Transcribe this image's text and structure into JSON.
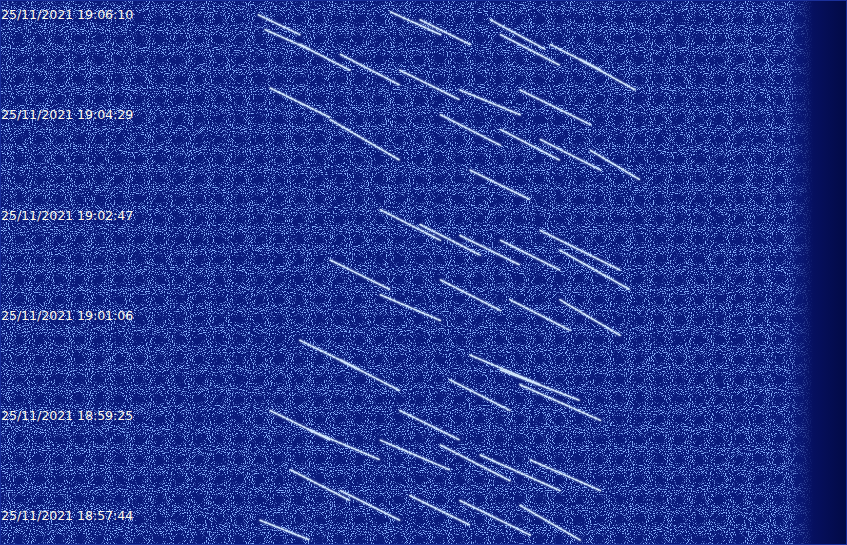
{
  "chart_data": {
    "type": "spectrogram",
    "xlim": [
      0,
      100
    ],
    "ylim": [
      68234,
      68785
    ],
    "yticks": [
      {
        "value": 68770,
        "label": "25/11/2021 19:06:10"
      },
      {
        "value": 68669,
        "label": "25/11/2021 19:04:29"
      },
      {
        "value": 68567,
        "label": "25/11/2021 19:02:47"
      },
      {
        "value": 68466,
        "label": "25/11/2021 19:01:06"
      },
      {
        "value": 68365,
        "label": "25/11/2021 18:59:25"
      },
      {
        "value": 68264,
        "label": "25/11/2021 18:57:44"
      }
    ],
    "tick_labels": "y",
    "grid": false,
    "color": "#d6ecff",
    "traces": [
      {
        "x": [
          30.5,
          35.4
        ],
        "y": [
          68770,
          68750
        ]
      },
      {
        "x": [
          31.3,
          36.6
        ],
        "y": [
          68755,
          68735
        ]
      },
      {
        "x": [
          35.4,
          41.3
        ],
        "y": [
          68740,
          68714
        ]
      },
      {
        "x": [
          40.2,
          47.2
        ],
        "y": [
          68730,
          68699
        ]
      },
      {
        "x": [
          46.1,
          52.0
        ],
        "y": [
          68773,
          68750
        ]
      },
      {
        "x": [
          49.6,
          55.5
        ],
        "y": [
          68765,
          68740
        ]
      },
      {
        "x": [
          57.9,
          64.4
        ],
        "y": [
          68765,
          68735
        ]
      },
      {
        "x": [
          59.1,
          66.1
        ],
        "y": [
          68750,
          68719
        ]
      },
      {
        "x": [
          65.0,
          70.9
        ],
        "y": [
          68740,
          68714
        ]
      },
      {
        "x": [
          68.5,
          75.0
        ],
        "y": [
          68725,
          68694
        ]
      },
      {
        "x": [
          47.2,
          54.3
        ],
        "y": [
          68714,
          68684
        ]
      },
      {
        "x": [
          54.3,
          61.4
        ],
        "y": [
          68694,
          68669
        ]
      },
      {
        "x": [
          61.4,
          69.7
        ],
        "y": [
          68694,
          68659
        ]
      },
      {
        "x": [
          31.9,
          39.0
        ],
        "y": [
          68696,
          68666
        ]
      },
      {
        "x": [
          39.0,
          47.2
        ],
        "y": [
          68664,
          68623
        ]
      },
      {
        "x": [
          52.0,
          59.1
        ],
        "y": [
          68669,
          68638
        ]
      },
      {
        "x": [
          59.1,
          66.1
        ],
        "y": [
          68654,
          68623
        ]
      },
      {
        "x": [
          63.8,
          70.9
        ],
        "y": [
          68644,
          68613
        ]
      },
      {
        "x": [
          69.7,
          75.6
        ],
        "y": [
          68633,
          68603
        ]
      },
      {
        "x": [
          55.5,
          62.6
        ],
        "y": [
          68613,
          68583
        ]
      },
      {
        "x": [
          44.9,
          52.0
        ],
        "y": [
          68573,
          68542
        ]
      },
      {
        "x": [
          49.6,
          56.7
        ],
        "y": [
          68558,
          68527
        ]
      },
      {
        "x": [
          54.3,
          61.4
        ],
        "y": [
          68547,
          68517
        ]
      },
      {
        "x": [
          59.1,
          66.1
        ],
        "y": [
          68542,
          68512
        ]
      },
      {
        "x": [
          63.8,
          73.2
        ],
        "y": [
          68552,
          68512
        ]
      },
      {
        "x": [
          66.1,
          74.4
        ],
        "y": [
          68532,
          68492
        ]
      },
      {
        "x": [
          39.0,
          46.1
        ],
        "y": [
          68522,
          68492
        ]
      },
      {
        "x": [
          44.9,
          52.0
        ],
        "y": [
          68487,
          68461
        ]
      },
      {
        "x": [
          52.0,
          59.1
        ],
        "y": [
          68502,
          68471
        ]
      },
      {
        "x": [
          60.2,
          67.3
        ],
        "y": [
          68482,
          68451
        ]
      },
      {
        "x": [
          66.1,
          73.2
        ],
        "y": [
          68482,
          68446
        ]
      },
      {
        "x": [
          35.4,
          42.5
        ],
        "y": [
          68441,
          68411
        ]
      },
      {
        "x": [
          40.2,
          47.2
        ],
        "y": [
          68421,
          68390
        ]
      },
      {
        "x": [
          55.5,
          63.8
        ],
        "y": [
          68426,
          68396
        ]
      },
      {
        "x": [
          59.1,
          68.5
        ],
        "y": [
          68411,
          68380
        ]
      },
      {
        "x": [
          61.4,
          70.9
        ],
        "y": [
          68396,
          68360
        ]
      },
      {
        "x": [
          53.1,
          60.2
        ],
        "y": [
          68401,
          68370
        ]
      },
      {
        "x": [
          47.2,
          54.3
        ],
        "y": [
          68370,
          68340
        ]
      },
      {
        "x": [
          31.9,
          39.0
        ],
        "y": [
          68370,
          68340
        ]
      },
      {
        "x": [
          36.6,
          44.9
        ],
        "y": [
          68350,
          68320
        ]
      },
      {
        "x": [
          44.9,
          53.1
        ],
        "y": [
          68340,
          68310
        ]
      },
      {
        "x": [
          52.0,
          60.2
        ],
        "y": [
          68335,
          68299
        ]
      },
      {
        "x": [
          56.7,
          66.1
        ],
        "y": [
          68325,
          68289
        ]
      },
      {
        "x": [
          62.6,
          70.9
        ],
        "y": [
          68320,
          68289
        ]
      },
      {
        "x": [
          34.3,
          41.3
        ],
        "y": [
          68310,
          68279
        ]
      },
      {
        "x": [
          40.2,
          47.2
        ],
        "y": [
          68289,
          68259
        ]
      },
      {
        "x": [
          48.4,
          55.5
        ],
        "y": [
          68284,
          68254
        ]
      },
      {
        "x": [
          54.3,
          62.6
        ],
        "y": [
          68279,
          68244
        ]
      },
      {
        "x": [
          61.4,
          68.5
        ],
        "y": [
          68274,
          68239
        ]
      },
      {
        "x": [
          30.7,
          36.6
        ],
        "y": [
          68259,
          68239
        ]
      }
    ]
  }
}
